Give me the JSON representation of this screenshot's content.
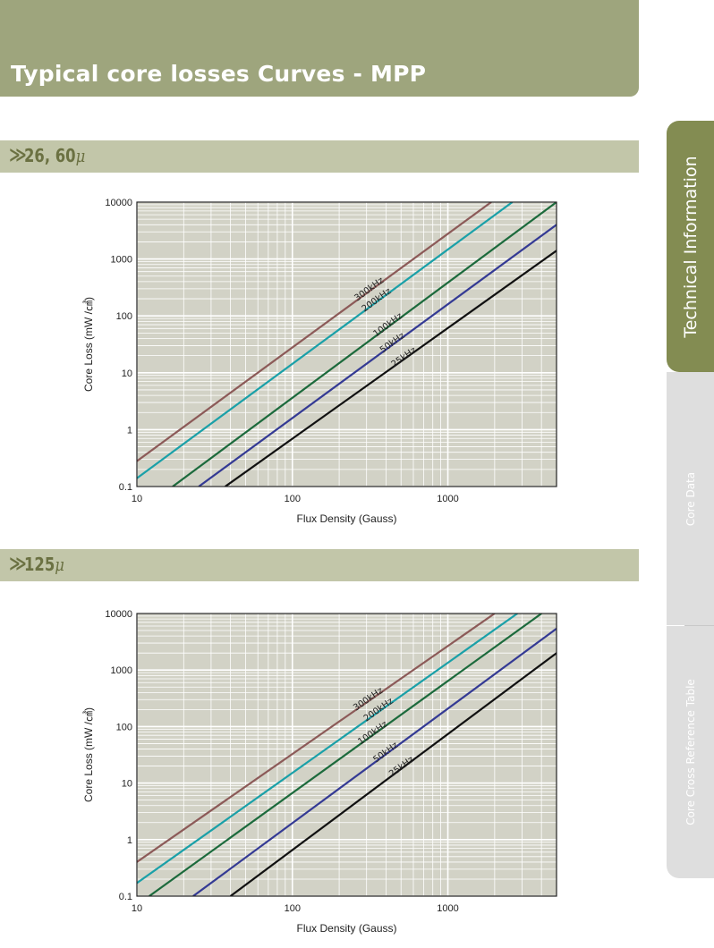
{
  "header": {
    "title": "Typical core losses Curves - MPP"
  },
  "sections": [
    {
      "marker": "≫",
      "label": "26, 60",
      "unit": "μ"
    },
    {
      "marker": "≫",
      "label": "125",
      "unit": "μ"
    }
  ],
  "side_tabs": [
    "Technical Information",
    "Core Data",
    "Core Cross Reference Table"
  ],
  "colors": {
    "header_bg": "#9ea57d",
    "section_bg": "#c2c6a9",
    "plot_bg": "#d2d2c6",
    "active_tab": "#838c52",
    "inactive_tab": "#dedede",
    "series": {
      "300kHz": "#8c5a58",
      "200kHz": "#1aa0a8",
      "100kHz": "#1c6a3c",
      "50kHz": "#343a94",
      "25kHz": "#111111"
    }
  },
  "chart_data": [
    {
      "type": "line",
      "title": "",
      "xlabel": "Flux Density (Gauss)",
      "ylabel": "Core Loss (mW /㎤)",
      "x_scale": "log",
      "y_scale": "log",
      "xlim": [
        10,
        5000
      ],
      "ylim": [
        0.1,
        10000
      ],
      "x_ticks": [
        "10",
        "100",
        "1000"
      ],
      "y_ticks": [
        "0.1",
        "1",
        "10",
        "100",
        "1000",
        "10000"
      ],
      "grid": true,
      "legend": "inline labels",
      "series": [
        {
          "name": "300kHz",
          "points": [
            [
              10,
              0.28
            ],
            [
              1900,
              10000
            ]
          ]
        },
        {
          "name": "200kHz",
          "points": [
            [
              10,
              0.14
            ],
            [
              2600,
              10000
            ]
          ]
        },
        {
          "name": "100kHz",
          "points": [
            [
              17,
              0.1
            ],
            [
              5000,
              10000
            ]
          ]
        },
        {
          "name": "50kHz",
          "points": [
            [
              25,
              0.1
            ],
            [
              5000,
              4000
            ]
          ]
        },
        {
          "name": "25kHz",
          "points": [
            [
              37,
              0.1
            ],
            [
              5000,
              1400
            ]
          ]
        }
      ]
    },
    {
      "type": "line",
      "title": "",
      "xlabel": "Flux Density (Gauss)",
      "ylabel": "Core Loss (mW /㎤)",
      "x_scale": "log",
      "y_scale": "log",
      "xlim": [
        10,
        5000
      ],
      "ylim": [
        0.1,
        10000
      ],
      "x_ticks": [
        "10",
        "100",
        "1000"
      ],
      "y_ticks": [
        "0.1",
        "1",
        "10",
        "100",
        "1000",
        "10000"
      ],
      "grid": true,
      "legend": "inline labels",
      "series": [
        {
          "name": "300kHz",
          "points": [
            [
              10,
              0.4
            ],
            [
              2000,
              10000
            ]
          ]
        },
        {
          "name": "200kHz",
          "points": [
            [
              10,
              0.17
            ],
            [
              2800,
              10000
            ]
          ]
        },
        {
          "name": "100kHz",
          "points": [
            [
              12,
              0.1
            ],
            [
              4000,
              10000
            ]
          ]
        },
        {
          "name": "50kHz",
          "points": [
            [
              23,
              0.1
            ],
            [
              5000,
              5400
            ]
          ]
        },
        {
          "name": "25kHz",
          "points": [
            [
              40,
              0.1
            ],
            [
              5000,
              2000
            ]
          ]
        }
      ]
    }
  ]
}
